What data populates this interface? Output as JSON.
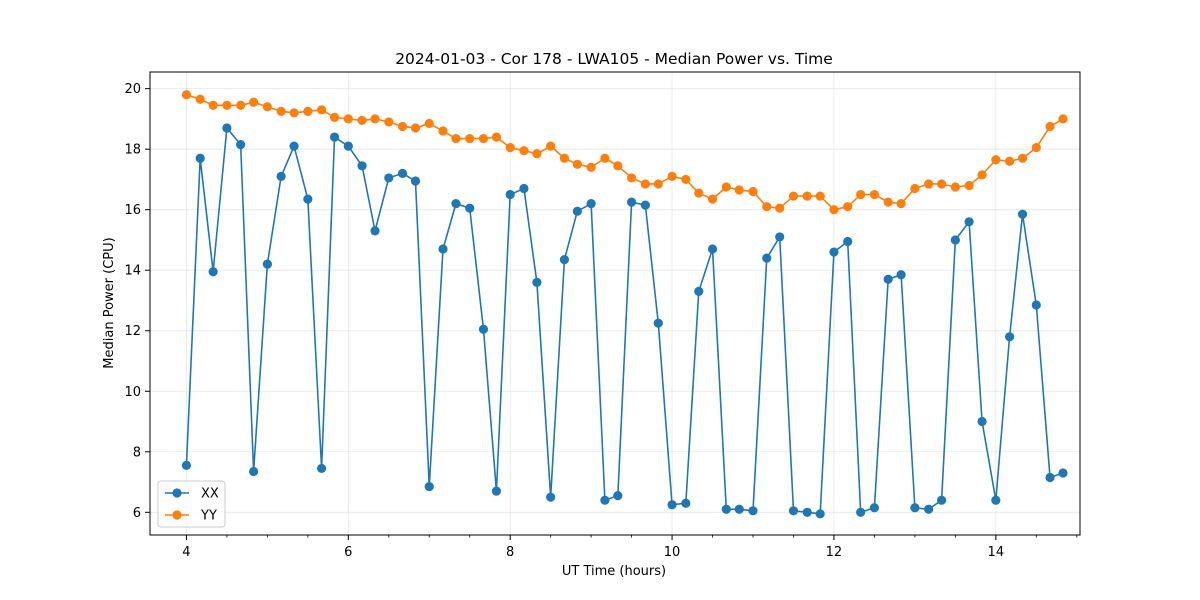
{
  "chart_data": {
    "type": "line",
    "title": "2024-01-03 - Cor 178 - LWA105 - Median Power vs. Time",
    "xlabel": "UT Time (hours)",
    "ylabel": "Median Power (CPU)",
    "xlim": [
      3.55,
      15.04
    ],
    "ylim": [
      5.25,
      20.55
    ],
    "xticks": [
      4,
      6,
      8,
      10,
      12,
      14
    ],
    "yticks": [
      6,
      8,
      10,
      12,
      14,
      16,
      18,
      20
    ],
    "xtick_labels": [
      "4",
      "6",
      "8",
      "10",
      "12",
      "14"
    ],
    "ytick_labels": [
      "6",
      "8",
      "10",
      "12",
      "14",
      "16",
      "18",
      "20"
    ],
    "grid": true,
    "legend": "lower-left",
    "x": [
      4.0,
      4.17,
      4.33,
      4.5,
      4.67,
      4.83,
      5.0,
      5.17,
      5.33,
      5.5,
      5.67,
      5.83,
      6.0,
      6.17,
      6.33,
      6.5,
      6.67,
      6.83,
      7.0,
      7.17,
      7.33,
      7.5,
      7.67,
      7.83,
      8.0,
      8.17,
      8.33,
      8.5,
      8.67,
      8.83,
      9.0,
      9.17,
      9.33,
      9.5,
      9.67,
      9.83,
      10.0,
      10.17,
      10.33,
      10.5,
      10.67,
      10.83,
      11.0,
      11.17,
      11.33,
      11.5,
      11.67,
      11.83,
      12.0,
      12.17,
      12.33,
      12.5,
      12.67,
      12.83,
      13.0,
      13.17,
      13.33,
      13.5,
      13.67,
      13.83,
      14.0,
      14.17,
      14.33,
      14.5,
      14.67,
      14.83
    ],
    "series": [
      {
        "name": "XX",
        "color": "#1f77b4",
        "values": [
          7.55,
          17.7,
          13.95,
          18.7,
          18.15,
          7.35,
          14.2,
          17.1,
          18.1,
          16.35,
          7.45,
          18.4,
          18.1,
          17.45,
          15.3,
          17.05,
          17.2,
          16.95,
          6.85,
          14.7,
          16.2,
          16.05,
          12.05,
          6.7,
          16.5,
          16.7,
          13.6,
          6.5,
          14.35,
          15.95,
          16.2,
          6.4,
          6.55,
          16.25,
          16.15,
          12.25,
          6.25,
          6.3,
          13.3,
          14.7,
          6.1,
          6.1,
          6.05,
          14.4,
          15.1,
          6.05,
          6.0,
          5.95,
          14.6,
          14.95,
          6.0,
          6.15,
          13.7,
          13.85,
          6.15,
          6.1,
          6.4,
          15.0,
          15.6,
          9.0,
          6.4,
          11.8,
          15.85,
          12.85,
          7.15,
          7.3
        ]
      },
      {
        "name": "YY",
        "color": "#ff7f0e",
        "values": [
          19.8,
          19.65,
          19.45,
          19.45,
          19.45,
          19.55,
          19.4,
          19.25,
          19.2,
          19.25,
          19.3,
          19.05,
          19.0,
          18.95,
          19.0,
          18.9,
          18.75,
          18.7,
          18.85,
          18.6,
          18.35,
          18.35,
          18.35,
          18.4,
          18.05,
          17.95,
          17.85,
          18.1,
          17.7,
          17.5,
          17.4,
          17.7,
          17.45,
          17.05,
          16.85,
          16.85,
          17.1,
          17.0,
          16.55,
          16.35,
          16.75,
          16.65,
          16.6,
          16.1,
          16.05,
          16.45,
          16.45,
          16.45,
          16.0,
          16.1,
          16.5,
          16.5,
          16.25,
          16.2,
          16.7,
          16.85,
          16.85,
          16.75,
          16.8,
          17.15,
          17.65,
          17.6,
          17.7,
          18.05,
          18.75,
          19.0
        ]
      }
    ]
  }
}
